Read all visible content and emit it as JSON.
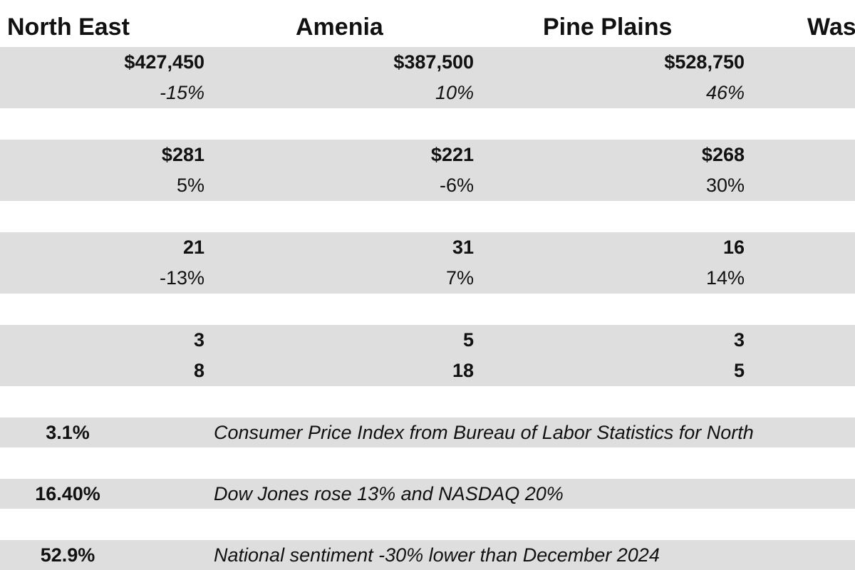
{
  "header": [
    "North East",
    "Amenia",
    "Pine Plains",
    "Was"
  ],
  "groups": [
    {
      "rows": [
        [
          "$427,450",
          "$387,500",
          "$528,750"
        ],
        [
          "-15%",
          "10%",
          "46%"
        ]
      ]
    },
    {
      "rows": [
        [
          "$281",
          "$221",
          "$268"
        ],
        [
          "5%",
          "-6%",
          "30%"
        ]
      ]
    },
    {
      "rows": [
        [
          "21",
          "31",
          "16"
        ],
        [
          "-13%",
          "7%",
          "14%"
        ]
      ]
    },
    {
      "rows": [
        [
          "3",
          "5",
          "3"
        ],
        [
          "8",
          "18",
          "5"
        ]
      ]
    }
  ],
  "notes": [
    {
      "value": "3.1%",
      "text": "Consumer Price Index from Bureau of Labor Statistics for North"
    },
    {
      "value": "16.40%",
      "text": "Dow Jones rose 13% and NASDAQ 20%"
    },
    {
      "value": "52.9%",
      "text": "National sentiment -30% lower than December 2024"
    }
  ]
}
